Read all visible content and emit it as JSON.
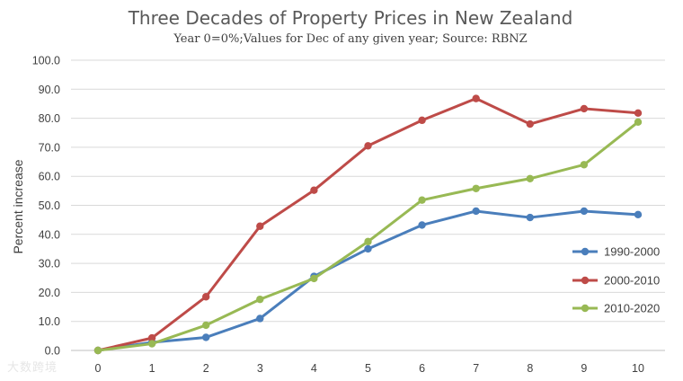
{
  "chart_data": {
    "type": "line",
    "title": "Three Decades of Property Prices in New Zealand",
    "subtitle": "Year 0=0%;Values for Dec of any given year; Source: RBNZ",
    "ylabel": "Percent increase",
    "xlabel": "",
    "x": [
      0,
      1,
      2,
      3,
      4,
      5,
      6,
      7,
      8,
      9,
      10
    ],
    "ylim": [
      0,
      100
    ],
    "yticks": [
      0,
      10,
      20,
      30,
      40,
      50,
      60,
      70,
      80,
      90,
      100
    ],
    "ytick_labels": [
      "0.0",
      "10.0",
      "20.0",
      "30.0",
      "40.0",
      "50.0",
      "60.0",
      "70.0",
      "80.0",
      "90.0",
      "100.0"
    ],
    "grid": true,
    "legend_position": "right",
    "series": [
      {
        "name": "1990-2000",
        "color": "#4a7ebb",
        "values": [
          0,
          2.8,
          4.5,
          11.0,
          25.5,
          35.0,
          43.2,
          48.0,
          45.8,
          48.0,
          46.8
        ]
      },
      {
        "name": "2000-2010",
        "color": "#be4b48",
        "values": [
          0,
          4.3,
          18.5,
          42.8,
          55.2,
          70.5,
          79.3,
          86.8,
          78.0,
          83.3,
          81.8
        ]
      },
      {
        "name": "2010-2020",
        "color": "#98b954",
        "values": [
          0,
          2.3,
          8.7,
          17.6,
          24.8,
          37.5,
          51.8,
          55.8,
          59.2,
          64.0,
          78.7
        ]
      }
    ]
  },
  "watermark": "大数跨境"
}
